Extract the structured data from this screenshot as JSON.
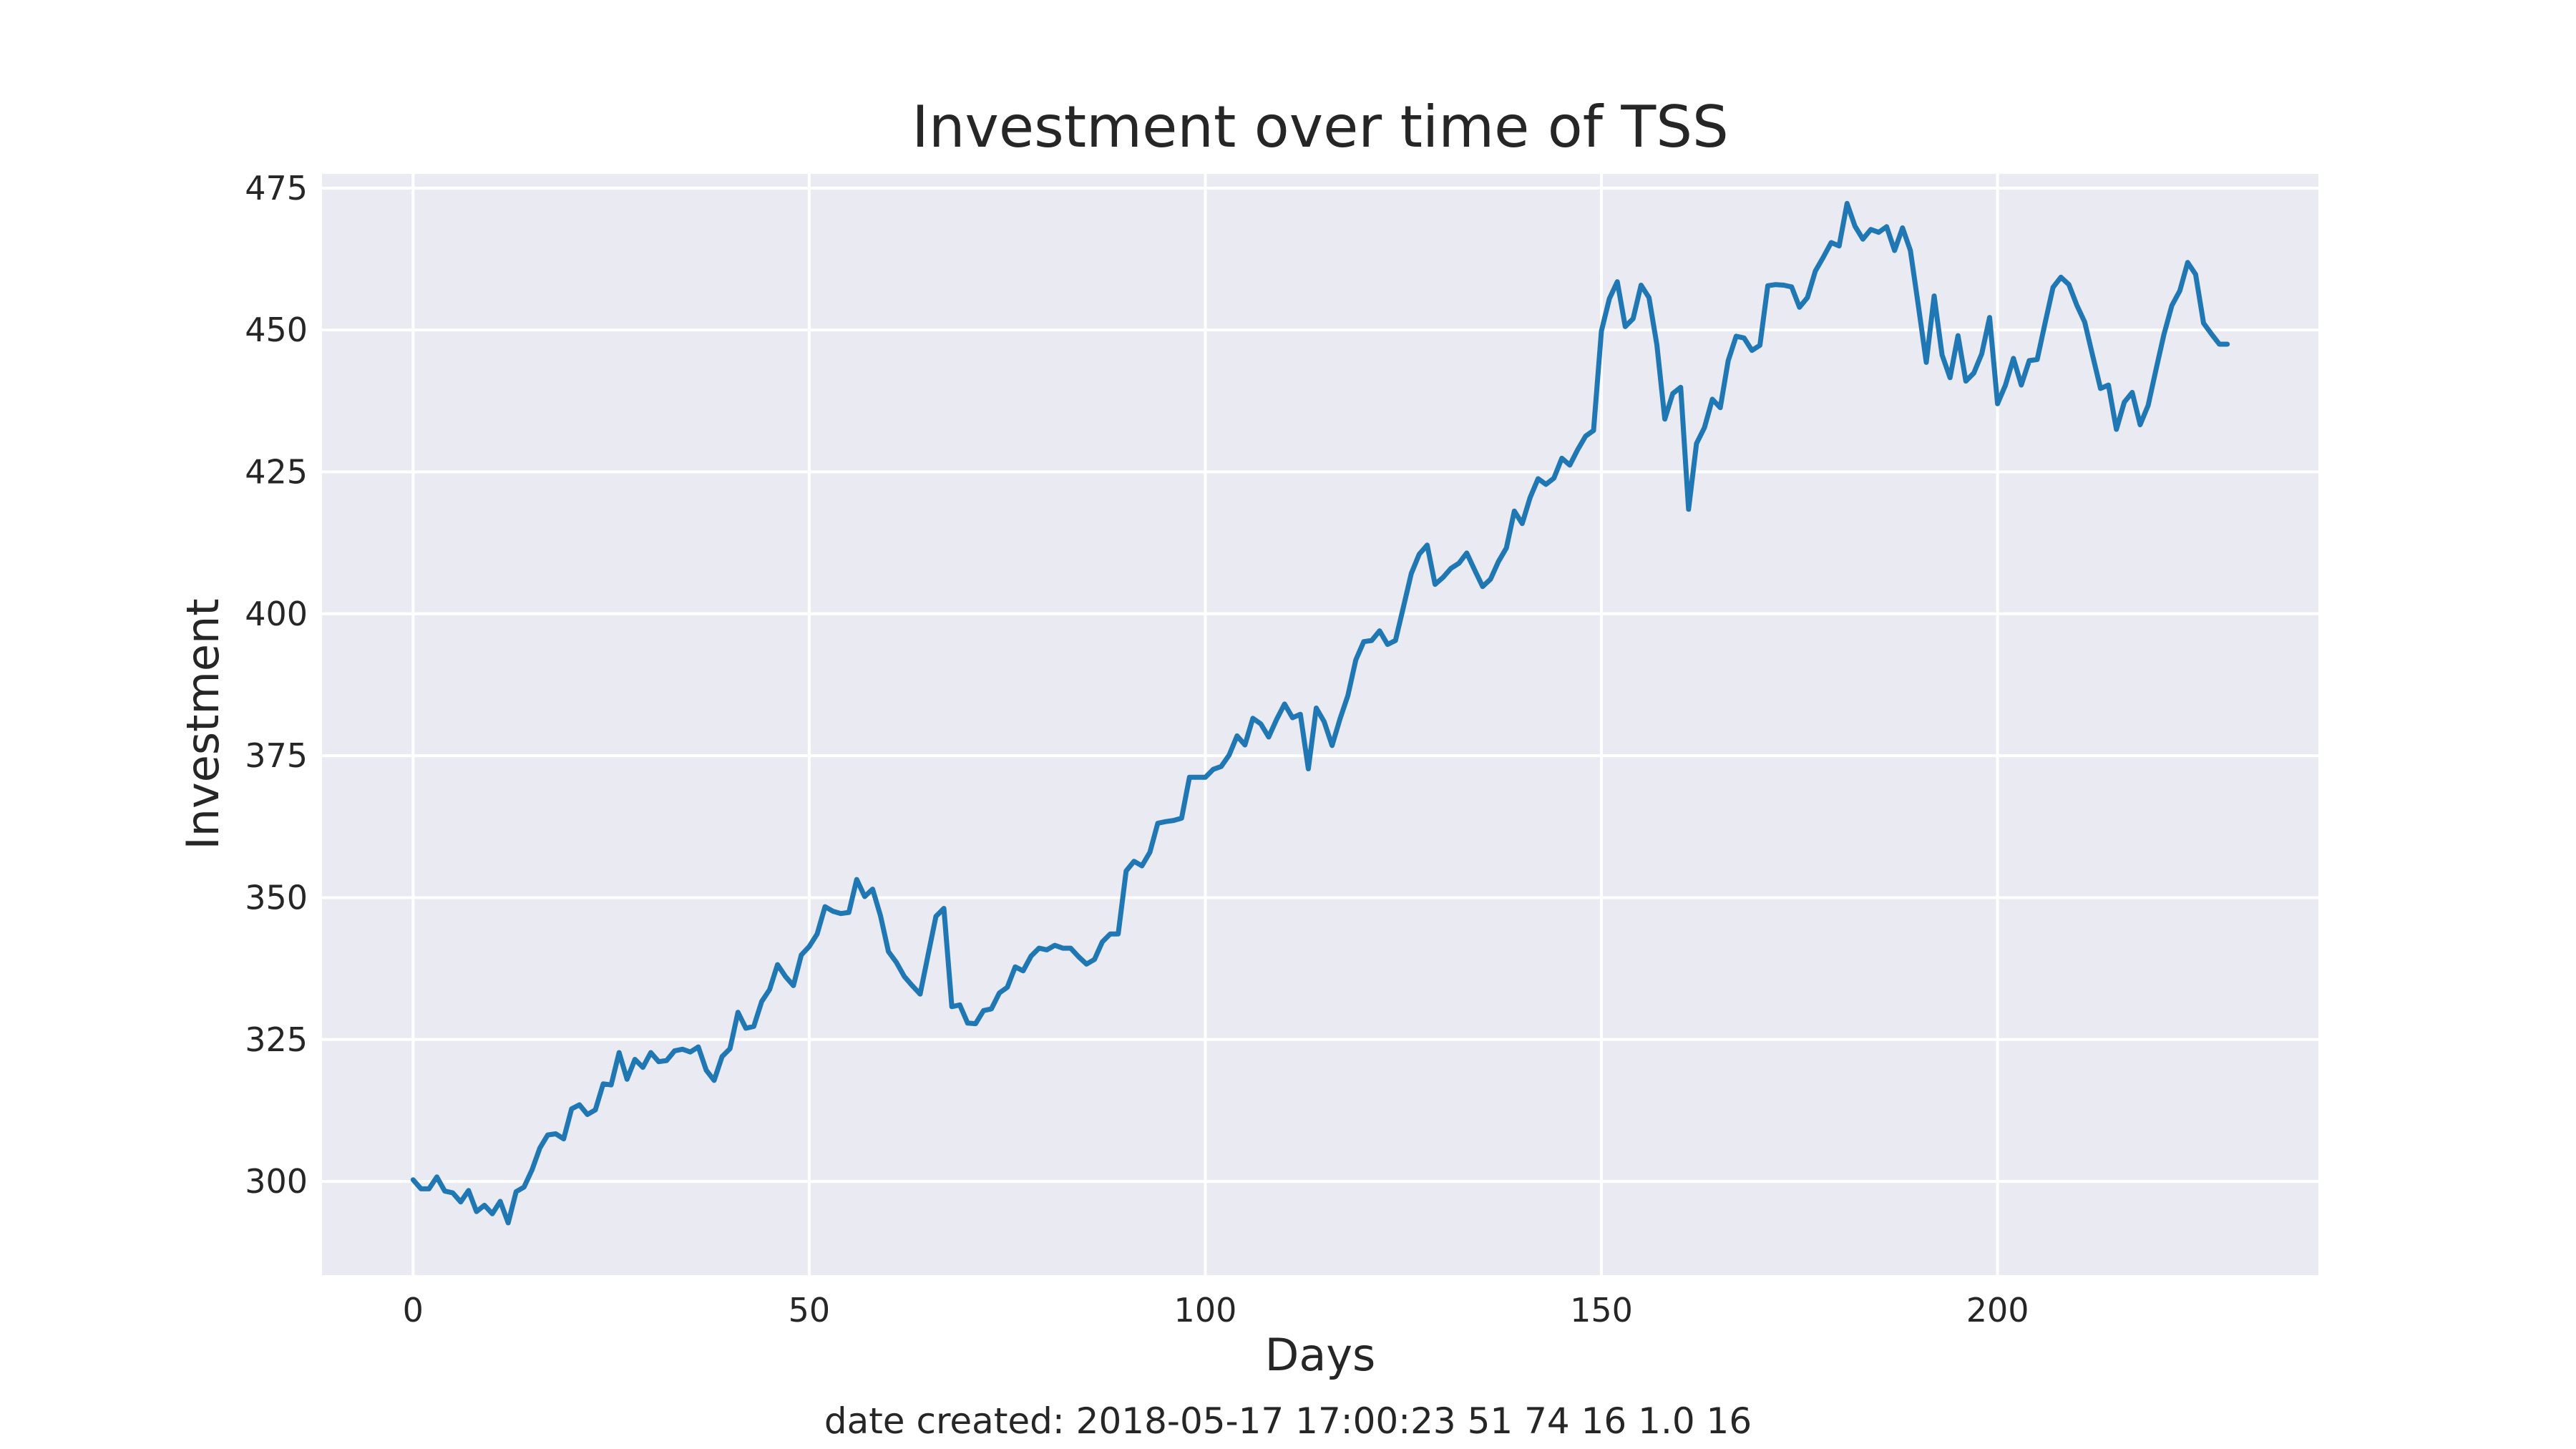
{
  "chart_data": {
    "type": "line",
    "title": "Investment over time of TSS",
    "xlabel": "Days",
    "ylabel": "Investment",
    "xlim": [
      -11.5,
      240.5
    ],
    "ylim": [
      283.5,
      477.5
    ],
    "xticks": [
      0,
      50,
      100,
      150,
      200
    ],
    "yticks": [
      300,
      325,
      350,
      375,
      400,
      425,
      450,
      475
    ],
    "grid": true,
    "legend": "none",
    "colors": {
      "line": "#1f77b4",
      "plot_bg": "#eaeaf2",
      "grid": "#ffffff"
    },
    "series": [
      {
        "x": [
          0,
          1,
          2,
          3,
          4,
          5,
          6,
          7,
          8,
          9,
          10,
          11,
          12,
          13,
          14,
          15,
          16,
          17,
          18,
          19,
          20,
          21,
          22,
          23,
          24,
          25,
          26,
          27,
          28,
          29,
          30,
          31,
          32,
          33,
          34,
          35,
          36,
          37,
          38,
          39,
          40,
          41,
          42,
          43,
          44,
          45,
          46,
          47,
          48,
          49,
          50,
          51,
          52,
          53,
          54,
          55,
          56,
          57,
          58,
          59,
          60,
          61,
          62,
          63,
          64,
          65,
          66,
          67,
          68,
          69,
          70,
          71,
          72,
          73,
          74,
          75,
          76,
          77,
          78,
          79,
          80,
          81,
          82,
          83,
          84,
          85,
          86,
          87,
          88,
          89,
          90,
          91,
          92,
          93,
          94,
          95,
          96,
          97,
          98,
          99,
          100,
          101,
          102,
          103,
          104,
          105,
          106,
          107,
          108,
          109,
          110,
          111,
          112,
          113,
          114,
          115,
          116,
          117,
          118,
          119,
          120,
          121,
          122,
          123,
          124,
          125,
          126,
          127,
          128,
          129,
          130,
          131,
          132,
          133,
          134,
          135,
          136,
          137,
          138,
          139,
          140,
          141,
          142,
          143,
          144,
          145,
          146,
          147,
          148,
          149,
          150,
          151,
          152,
          153,
          154,
          155,
          156,
          157,
          158,
          159,
          160,
          161,
          162,
          163,
          164,
          165,
          166,
          167,
          168,
          169,
          170,
          171,
          172,
          173,
          174,
          175,
          176,
          177,
          178,
          179,
          180,
          181,
          182,
          183,
          184,
          185,
          186,
          187,
          188,
          189,
          190,
          191,
          192,
          193,
          194,
          195,
          196,
          197,
          198,
          199,
          200,
          201,
          202,
          203,
          204,
          205,
          206,
          207,
          208,
          209,
          210,
          211,
          212,
          213,
          214,
          215,
          216,
          217,
          218,
          219,
          220,
          221,
          222,
          223,
          224,
          225,
          226,
          227,
          228,
          229
        ],
        "y": [
          300.3,
          298.7,
          298.7,
          300.8,
          298.3,
          298.0,
          296.4,
          298.4,
          294.7,
          295.8,
          294.3,
          296.5,
          292.7,
          298.2,
          299.0,
          302.0,
          305.9,
          308.2,
          308.4,
          307.5,
          312.8,
          313.5,
          311.8,
          312.6,
          317.2,
          317.0,
          322.7,
          318.0,
          321.5,
          320.1,
          322.7,
          321.1,
          321.3,
          323.0,
          323.3,
          322.8,
          323.7,
          319.6,
          317.8,
          322.0,
          323.4,
          329.8,
          327.0,
          327.3,
          331.7,
          333.8,
          338.2,
          336.1,
          334.5,
          339.9,
          341.4,
          343.6,
          348.4,
          347.6,
          347.2,
          347.4,
          353.2,
          350.2,
          351.5,
          346.8,
          340.5,
          338.6,
          336.1,
          334.5,
          333.0,
          339.9,
          346.7,
          348.1,
          330.8,
          331.1,
          327.9,
          327.8,
          330.1,
          330.4,
          333.2,
          334.2,
          337.8,
          337.1,
          339.7,
          341.1,
          340.8,
          341.6,
          341.1,
          341.1,
          339.6,
          338.3,
          339.1,
          342.2,
          343.6,
          343.6,
          354.7,
          356.4,
          355.6,
          358.0,
          363.1,
          363.4,
          363.6,
          364.0,
          371.2,
          371.2,
          371.2,
          372.6,
          373.1,
          375.1,
          378.5,
          376.9,
          381.6,
          380.6,
          378.3,
          381.4,
          384.1,
          381.7,
          382.3,
          372.7,
          383.4,
          381.0,
          376.8,
          381.5,
          385.6,
          391.9,
          395.1,
          395.3,
          397.0,
          394.6,
          395.3,
          401.2,
          407.1,
          410.5,
          412.1,
          405.2,
          406.4,
          408.0,
          408.9,
          410.7,
          407.7,
          404.8,
          406.1,
          409.2,
          411.6,
          418.1,
          415.9,
          420.5,
          423.8,
          422.8,
          423.9,
          427.4,
          426.2,
          428.9,
          431.3,
          432.3,
          449.8,
          455.5,
          458.5,
          450.6,
          452.0,
          457.9,
          455.7,
          447.4,
          434.3,
          438.8,
          439.9,
          418.4,
          430.0,
          432.8,
          437.8,
          436.3,
          444.6,
          448.9,
          448.6,
          446.4,
          447.3,
          457.8,
          458.0,
          457.9,
          457.6,
          454.0,
          455.7,
          460.4,
          462.8,
          465.4,
          464.8,
          472.3,
          468.3,
          466.0,
          467.7,
          467.2,
          468.2,
          464.0,
          468.0,
          464.0,
          454.3,
          444.3,
          456.0,
          445.6,
          441.6,
          449.0,
          441.0,
          442.4,
          445.8,
          452.2,
          437.0,
          440.3,
          445.0,
          440.3,
          444.6,
          444.8,
          451.2,
          457.5,
          459.3,
          458.0,
          454.4,
          451.4,
          445.5,
          439.7,
          440.3,
          432.5,
          437.3,
          439.0,
          433.3,
          436.7,
          443.0,
          449.2,
          454.3,
          456.9,
          461.9,
          459.8,
          451.2,
          449.3,
          447.5,
          447.5
        ]
      }
    ]
  },
  "footer": "date created: 2018-05-17 17:00:23 51 74 16 1.0 16"
}
